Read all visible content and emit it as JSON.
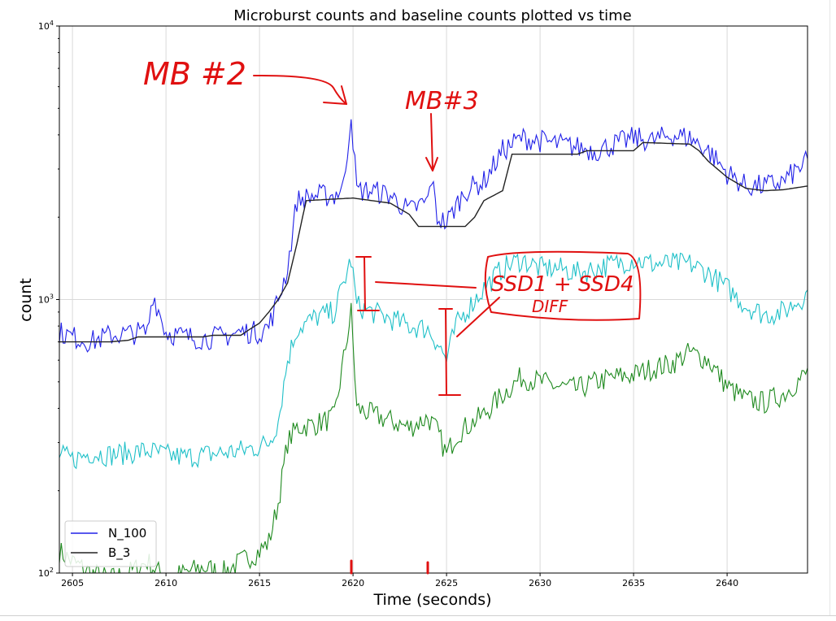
{
  "chart_data": {
    "type": "line",
    "title": "Microburst counts and baseline counts plotted vs time",
    "xlabel": "Time (seconds)",
    "ylabel": "count",
    "xlim": [
      2604.3,
      2644.3
    ],
    "ylim": [
      100,
      10000
    ],
    "yscale": "log",
    "grid": true,
    "x_ticks": [
      "2605",
      "2610",
      "2615",
      "2620",
      "2625",
      "2630",
      "2635",
      "2640"
    ],
    "y_ticks": [
      {
        "base": "10",
        "exp": "2",
        "value": 100
      },
      {
        "base": "10",
        "exp": "3",
        "value": 1000
      },
      {
        "base": "10",
        "exp": "4",
        "value": 10000
      }
    ],
    "legend": {
      "position": "lower-left",
      "entries": [
        "N_100",
        "B_3"
      ]
    },
    "series": [
      {
        "name": "N_100",
        "color": "#2121e8",
        "x": [
          2604.3,
          2605,
          2606,
          2607,
          2608,
          2609,
          2609.3,
          2610,
          2611,
          2612,
          2613,
          2614,
          2615,
          2615.5,
          2616,
          2616.5,
          2617,
          2618,
          2619,
          2619.5,
          2619.9,
          2620.2,
          2621,
          2622,
          2623,
          2624,
          2624.2,
          2624.5,
          2625,
          2625.5,
          2626,
          2627,
          2628,
          2629,
          2630,
          2631,
          2632,
          2633,
          2634,
          2635,
          2636,
          2637,
          2638,
          2639,
          2640,
          2641,
          2642,
          2643,
          2644.3
        ],
        "y": [
          760,
          730,
          700,
          740,
          750,
          760,
          1050,
          760,
          730,
          720,
          730,
          760,
          760,
          800,
          1000,
          1300,
          2300,
          2400,
          2400,
          2600,
          4800,
          2500,
          2500,
          2400,
          2100,
          2300,
          2800,
          2000,
          1900,
          2200,
          2500,
          2700,
          3500,
          3900,
          3800,
          3700,
          3600,
          3500,
          3700,
          3900,
          3800,
          4000,
          3900,
          3500,
          2900,
          2600,
          2600,
          2700,
          3200
        ]
      },
      {
        "name": "B_3",
        "color": "#222222",
        "x": [
          2604.3,
          2607,
          2608,
          2608.5,
          2612,
          2612.5,
          2614,
          2614.5,
          2615,
          2615.5,
          2616,
          2616.5,
          2617,
          2617.3,
          2617.5,
          2620,
          2621,
          2622,
          2623,
          2623.5,
          2626,
          2626.5,
          2627,
          2628,
          2628.5,
          2632,
          2632.5,
          2635,
          2635.5,
          2638,
          2638.5,
          2639,
          2640,
          2641,
          2642,
          2643,
          2644.3
        ],
        "y": [
          700,
          700,
          710,
          730,
          730,
          740,
          740,
          780,
          820,
          900,
          1000,
          1150,
          1600,
          2000,
          2300,
          2350,
          2300,
          2250,
          2050,
          1850,
          1850,
          2000,
          2300,
          2500,
          3400,
          3400,
          3500,
          3500,
          3750,
          3700,
          3500,
          3200,
          2800,
          2550,
          2500,
          2520,
          2600
        ]
      },
      {
        "name": "",
        "color": "#1fc0c8",
        "x": [
          2604.3,
          2605,
          2606,
          2607,
          2608,
          2609,
          2610,
          2611,
          2612,
          2613,
          2614,
          2615,
          2615.5,
          2616,
          2616.5,
          2617,
          2618,
          2619,
          2619.9,
          2620.2,
          2621,
          2622,
          2623,
          2624,
          2624.5,
          2625,
          2625.5,
          2626,
          2627,
          2628,
          2629,
          2630,
          2631,
          2632,
          2633,
          2634,
          2635,
          2636,
          2637,
          2638,
          2639,
          2640,
          2641,
          2642,
          2643,
          2644.3
        ],
        "y": [
          270,
          260,
          275,
          270,
          275,
          280,
          270,
          265,
          270,
          275,
          280,
          290,
          300,
          360,
          600,
          780,
          860,
          900,
          1400,
          950,
          900,
          850,
          800,
          780,
          700,
          600,
          800,
          900,
          1100,
          1300,
          1400,
          1300,
          1300,
          1250,
          1300,
          1350,
          1400,
          1350,
          1350,
          1350,
          1250,
          1100,
          950,
          880,
          900,
          1050
        ]
      },
      {
        "name": "",
        "color": "#1f8a1f",
        "x": [
          2604.3,
          2605,
          2606,
          2607,
          2608,
          2609,
          2610,
          2611,
          2612,
          2613,
          2614,
          2615,
          2615.5,
          2616,
          2616.5,
          2617,
          2618,
          2619,
          2619.9,
          2620.2,
          2621,
          2622,
          2623,
          2624,
          2624.5,
          2625,
          2625.5,
          2626,
          2627,
          2628,
          2629,
          2630,
          2631,
          2632,
          2633,
          2634,
          2635,
          2636,
          2637,
          2638,
          2639,
          2640,
          2641,
          2642,
          2643,
          2644.3
        ],
        "y": [
          120,
          110,
          100,
          95,
          100,
          110,
          95,
          100,
          105,
          100,
          110,
          120,
          130,
          180,
          300,
          340,
          350,
          370,
          900,
          400,
          380,
          360,
          340,
          370,
          330,
          270,
          320,
          340,
          380,
          450,
          520,
          500,
          480,
          470,
          500,
          520,
          530,
          560,
          580,
          640,
          600,
          480,
          430,
          420,
          450,
          540
        ]
      }
    ],
    "annotations": [
      "MB #2",
      "MB#3",
      "SSD1 + SSD4",
      "DIFF"
    ]
  }
}
